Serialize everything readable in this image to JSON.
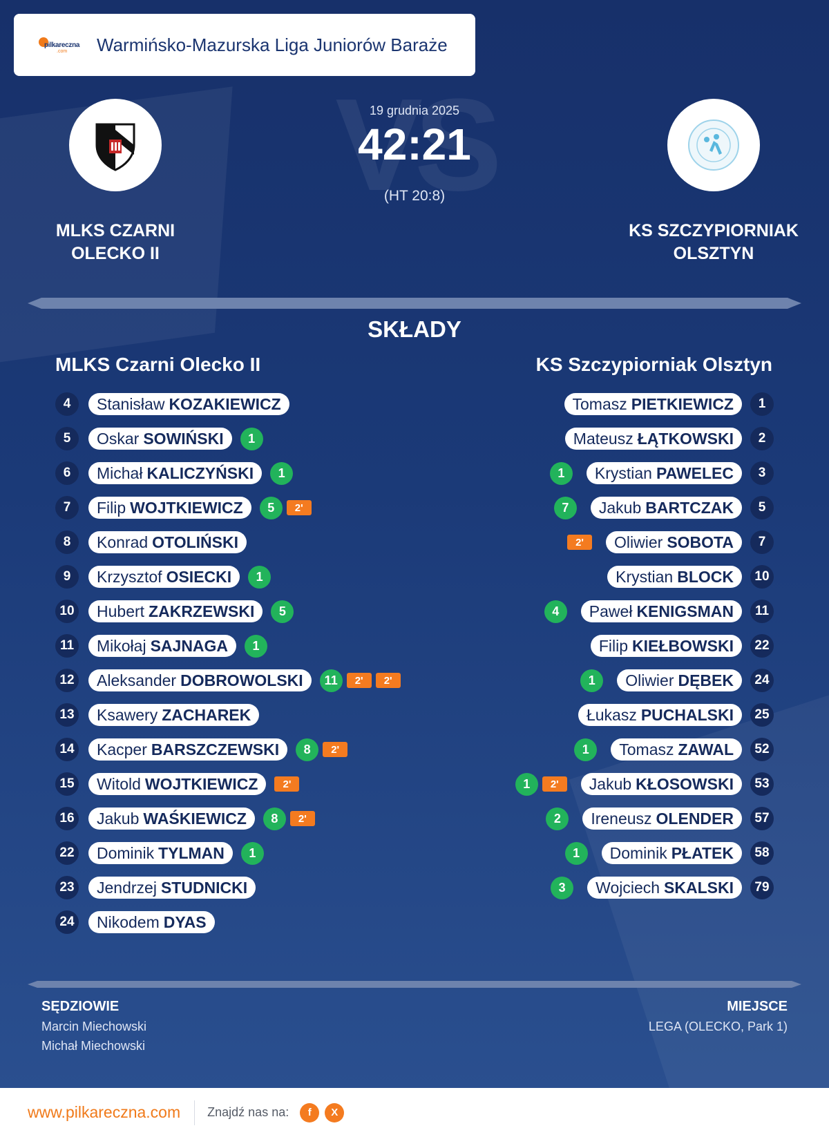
{
  "header": {
    "brand_name": "pilkareczna",
    "brand_sub": ".com",
    "league": "Warmińsko-Mazurska Liga Juniorów Baraże"
  },
  "match": {
    "date": "19 grudnia 2025",
    "score": "42:21",
    "half_time": "(HT 20:8)",
    "vs_watermark": "VS"
  },
  "home": {
    "name_line1": "MLKS CZARNI",
    "name_line2": "OLECKO II",
    "title": "MLKS Czarni Olecko II",
    "players": [
      {
        "num": "4",
        "first": "Stanisław",
        "last": "KOZAKIEWICZ",
        "goals": "",
        "susp": 0
      },
      {
        "num": "5",
        "first": "Oskar",
        "last": "SOWIŃSKI",
        "goals": "1",
        "susp": 0
      },
      {
        "num": "6",
        "first": "Michał",
        "last": "KALICZYŃSKI",
        "goals": "1",
        "susp": 0
      },
      {
        "num": "7",
        "first": "Filip",
        "last": "WOJTKIEWICZ",
        "goals": "5",
        "susp": 1
      },
      {
        "num": "8",
        "first": "Konrad",
        "last": "OTOLIŃSKI",
        "goals": "",
        "susp": 0
      },
      {
        "num": "9",
        "first": "Krzysztof",
        "last": "OSIECKI",
        "goals": "1",
        "susp": 0
      },
      {
        "num": "10",
        "first": "Hubert",
        "last": "ZAKRZEWSKI",
        "goals": "5",
        "susp": 0
      },
      {
        "num": "11",
        "first": "Mikołaj",
        "last": "SAJNAGA",
        "goals": "1",
        "susp": 0
      },
      {
        "num": "12",
        "first": "Aleksander",
        "last": "DOBROWOLSKI",
        "goals": "11",
        "susp": 2
      },
      {
        "num": "13",
        "first": "Ksawery",
        "last": "ZACHAREK",
        "goals": "",
        "susp": 0
      },
      {
        "num": "14",
        "first": "Kacper",
        "last": "BARSZCZEWSKI",
        "goals": "8",
        "susp": 1
      },
      {
        "num": "15",
        "first": "Witold",
        "last": "WOJTKIEWICZ",
        "goals": "",
        "susp": 1
      },
      {
        "num": "16",
        "first": "Jakub",
        "last": "WAŚKIEWICZ",
        "goals": "8",
        "susp": 1
      },
      {
        "num": "22",
        "first": "Dominik",
        "last": "TYLMAN",
        "goals": "1",
        "susp": 0
      },
      {
        "num": "23",
        "first": "Jendrzej",
        "last": "STUDNICKI",
        "goals": "",
        "susp": 0
      },
      {
        "num": "24",
        "first": "Nikodem",
        "last": "DYAS",
        "goals": "",
        "susp": 0
      }
    ]
  },
  "away": {
    "name_line1": "KS SZCZYPIORNIAK",
    "name_line2": "OLSZTYN",
    "title": "KS Szczypiorniak Olsztyn",
    "players": [
      {
        "num": "1",
        "first": "Tomasz",
        "last": "PIETKIEWICZ",
        "goals": "",
        "susp": 0
      },
      {
        "num": "2",
        "first": "Mateusz",
        "last": "ŁĄTKOWSKI",
        "goals": "",
        "susp": 0
      },
      {
        "num": "3",
        "first": "Krystian",
        "last": "PAWELEC",
        "goals": "1",
        "susp": 0
      },
      {
        "num": "5",
        "first": "Jakub",
        "last": "BARTCZAK",
        "goals": "7",
        "susp": 0
      },
      {
        "num": "7",
        "first": "Oliwier",
        "last": "SOBOTA",
        "goals": "",
        "susp": 1
      },
      {
        "num": "10",
        "first": "Krystian",
        "last": "BLOCK",
        "goals": "",
        "susp": 0
      },
      {
        "num": "11",
        "first": "Paweł",
        "last": "KENIGSMAN",
        "goals": "4",
        "susp": 0
      },
      {
        "num": "22",
        "first": "Filip",
        "last": "KIEŁBOWSKI",
        "goals": "",
        "susp": 0
      },
      {
        "num": "24",
        "first": "Oliwier",
        "last": "DĘBEK",
        "goals": "1",
        "susp": 0
      },
      {
        "num": "25",
        "first": "Łukasz",
        "last": "PUCHALSKI",
        "goals": "",
        "susp": 0
      },
      {
        "num": "52",
        "first": "Tomasz",
        "last": "ZAWAL",
        "goals": "1",
        "susp": 0
      },
      {
        "num": "53",
        "first": "Jakub",
        "last": "KŁOSOWSKI",
        "goals": "1",
        "susp": 1
      },
      {
        "num": "57",
        "first": "Ireneusz",
        "last": "OLENDER",
        "goals": "2",
        "susp": 0
      },
      {
        "num": "58",
        "first": "Dominik",
        "last": "PŁATEK",
        "goals": "1",
        "susp": 0
      },
      {
        "num": "79",
        "first": "Wojciech",
        "last": "SKALSKI",
        "goals": "3",
        "susp": 0
      }
    ]
  },
  "suspension_label": "2'",
  "section_title": "SKŁADY",
  "referees": {
    "label": "SĘDZIOWIE",
    "names": [
      "Marcin Miechowski",
      "Michał Miechowski"
    ]
  },
  "venue": {
    "label": "MIEJSCE",
    "value": "LEGA (OLECKO, Park 1)"
  },
  "footer": {
    "site": "www.pilkareczna.com",
    "find_us": "Znajdź nas na:",
    "social": [
      {
        "icon": "facebook-icon",
        "glyph": "f"
      },
      {
        "icon": "x-icon",
        "glyph": "X"
      }
    ]
  },
  "colors": {
    "background": "#1b3570",
    "accent": "#f07a1a",
    "goal": "#22b35b",
    "suspension": "#f47b20"
  }
}
